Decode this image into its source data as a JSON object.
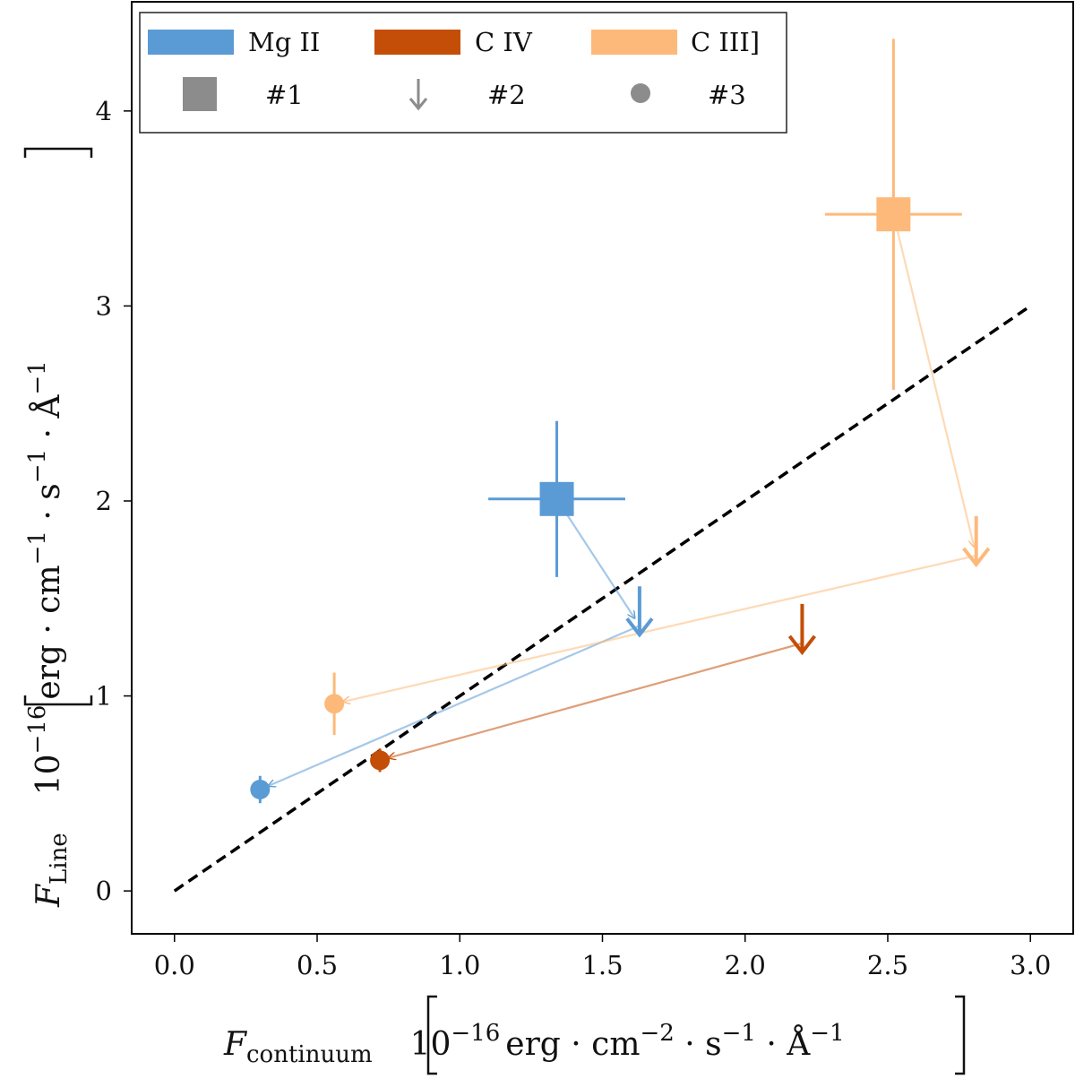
{
  "chart_data": {
    "type": "scatter",
    "title": "",
    "xlabel": {
      "symbol": "F",
      "subscript": "continuum",
      "unit_prefix": "10",
      "unit_exp": "−16",
      "unit_body": "erg · cm",
      "unit_exp2": "−2",
      "unit_mid": " · s",
      "unit_exp3": "−1",
      "unit_end": " · Å",
      "unit_exp4": "−1"
    },
    "ylabel": {
      "symbol": "F",
      "subscript": "Line",
      "unit_prefix": "10",
      "unit_exp": "−16",
      "unit_body": "erg · cm",
      "unit_exp2": "−1",
      "unit_mid": " · s",
      "unit_exp3": "−1",
      "unit_end": " · Å",
      "unit_exp4": "−1"
    },
    "xlim": [
      -0.15,
      3.15
    ],
    "ylim": [
      -0.22,
      4.56
    ],
    "xticks": [
      0.0,
      0.5,
      1.0,
      1.5,
      2.0,
      2.5,
      3.0
    ],
    "xtick_labels": [
      "0.0",
      "0.5",
      "1.0",
      "1.5",
      "2.0",
      "2.5",
      "3.0"
    ],
    "yticks": [
      0,
      1,
      2,
      3,
      4
    ],
    "ytick_labels": [
      "0",
      "1",
      "2",
      "3",
      "4"
    ],
    "grid": false,
    "reference_line": {
      "name": "one-to-one",
      "x": [
        0,
        3
      ],
      "y": [
        0,
        3
      ],
      "style": "dashed",
      "color": "#000000"
    },
    "legend": {
      "placement": "top-left",
      "lines": [
        {
          "label": "Mg II",
          "color": "#5b9bd5"
        },
        {
          "label": "C IV",
          "color": "#c44e07"
        },
        {
          "label": "C III]",
          "color": "#fdb97a"
        }
      ],
      "markers": [
        {
          "label": "#1",
          "marker": "square",
          "color": "#8c8c8c"
        },
        {
          "label": "#2",
          "marker": "down-arrow",
          "color": "#8c8c8c"
        },
        {
          "label": "#3",
          "marker": "circle",
          "color": "#8c8c8c"
        }
      ]
    },
    "series": [
      {
        "name": "Mg II",
        "color": "#5b9bd5",
        "points": [
          {
            "epoch": "#1",
            "marker": "square",
            "x": 1.34,
            "y": 2.01,
            "xerr": 0.24,
            "yerr": 0.4
          },
          {
            "epoch": "#2",
            "marker": "down-arrow",
            "x": 1.63,
            "y": 1.36,
            "upper_limit": true
          },
          {
            "epoch": "#3",
            "marker": "circle",
            "x": 0.3,
            "y": 0.52,
            "xerr": 0.02,
            "yerr": 0.07
          }
        ]
      },
      {
        "name": "C IV",
        "color": "#c44e07",
        "points": [
          {
            "epoch": "#2",
            "marker": "down-arrow",
            "x": 2.2,
            "y": 1.27,
            "upper_limit": true
          },
          {
            "epoch": "#3",
            "marker": "circle",
            "x": 0.72,
            "y": 0.67,
            "xerr": 0.02,
            "yerr": 0.06
          }
        ]
      },
      {
        "name": "C III]",
        "color": "#fdb97a",
        "points": [
          {
            "epoch": "#1",
            "marker": "square",
            "x": 2.52,
            "y": 3.47,
            "xerr": 0.24,
            "yerr": 0.9
          },
          {
            "epoch": "#2",
            "marker": "down-arrow",
            "x": 2.81,
            "y": 1.72,
            "upper_limit": true
          },
          {
            "epoch": "#3",
            "marker": "circle",
            "x": 0.56,
            "y": 0.96,
            "xerr": 0.02,
            "yerr": 0.16
          }
        ]
      }
    ],
    "transitions": [
      {
        "series": "Mg II",
        "from": [
          1.34,
          2.01
        ],
        "to": [
          1.63,
          1.36
        ],
        "color": "#5b9bd5"
      },
      {
        "series": "Mg II",
        "from": [
          1.63,
          1.36
        ],
        "to": [
          0.3,
          0.52
        ],
        "color": "#5b9bd5"
      },
      {
        "series": "C IV",
        "from": [
          2.2,
          1.27
        ],
        "to": [
          0.72,
          0.67
        ],
        "color": "#c44e07"
      },
      {
        "series": "C III]",
        "from": [
          2.52,
          3.47
        ],
        "to": [
          2.81,
          1.72
        ],
        "color": "#fdb97a"
      },
      {
        "series": "C III]",
        "from": [
          2.81,
          1.72
        ],
        "to": [
          0.56,
          0.96
        ],
        "color": "#fdb97a"
      }
    ]
  }
}
